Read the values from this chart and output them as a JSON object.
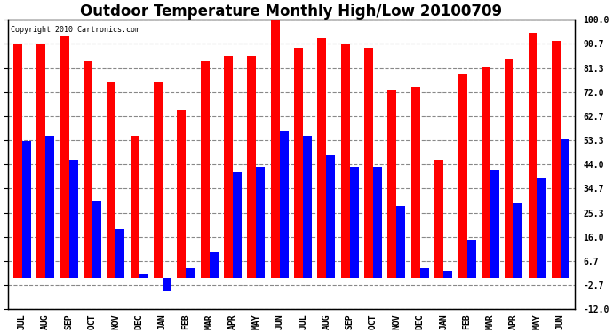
{
  "title": "Outdoor Temperature Monthly High/Low 20100709",
  "copyright": "Copyright 2010 Cartronics.com",
  "months": [
    "JUL",
    "AUG",
    "SEP",
    "OCT",
    "NOV",
    "DEC",
    "JAN",
    "FEB",
    "MAR",
    "APR",
    "MAY",
    "JUN",
    "JUL",
    "AUG",
    "SEP",
    "OCT",
    "NOV",
    "DEC",
    "JAN",
    "FEB",
    "MAR",
    "APR",
    "MAY",
    "JUN"
  ],
  "highs": [
    91.0,
    90.7,
    94.0,
    84.0,
    76.0,
    55.0,
    76.0,
    65.0,
    84.0,
    86.0,
    86.0,
    101.0,
    89.0,
    93.0,
    91.0,
    89.0,
    73.0,
    74.0,
    46.0,
    79.0,
    82.0,
    85.0,
    95.0,
    92.0
  ],
  "lows": [
    53.0,
    55.0,
    46.0,
    30.0,
    19.0,
    2.0,
    -5.0,
    4.0,
    10.0,
    41.0,
    43.0,
    57.0,
    55.0,
    48.0,
    43.0,
    43.0,
    28.0,
    4.0,
    3.0,
    15.0,
    42.0,
    29.0,
    39.0,
    54.0
  ],
  "high_color": "#ff0000",
  "low_color": "#0000ff",
  "background_color": "#ffffff",
  "grid_color": "#888888",
  "yticks": [
    100.0,
    90.7,
    81.3,
    72.0,
    62.7,
    53.3,
    44.0,
    34.7,
    25.3,
    16.0,
    6.7,
    -2.7,
    -12.0
  ],
  "ymin": -12.0,
  "ymax": 100.0,
  "title_fontsize": 12,
  "bar_width": 0.38
}
